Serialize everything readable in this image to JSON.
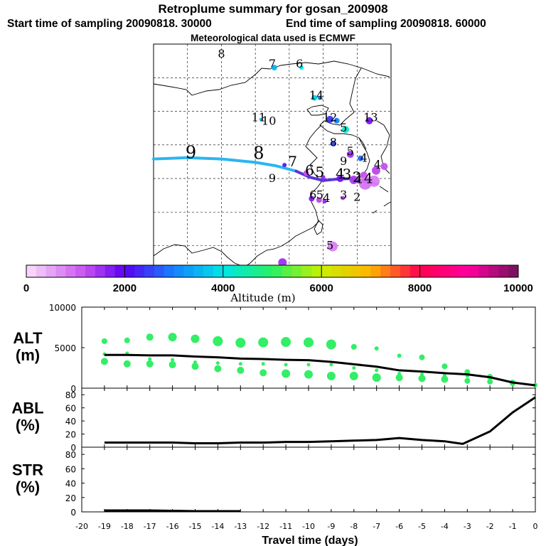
{
  "titles": {
    "line1": "Retroplume summary for gosan_200908",
    "line2_start": "Start time of sampling 20090818. 30000",
    "line2_end": "End time of sampling 20090818. 60000",
    "line3": "Meteorological data used is ECMWF"
  },
  "colors": {
    "track_light": "#2ab6f0",
    "track_dark": "#5a35d6",
    "green_dots": "#33ee66",
    "line": "#000000"
  },
  "chart_data": [
    {
      "type": "map",
      "title": "Retroplume summary for gosan_200908",
      "map_labels": [
        {
          "text": "9",
          "lon": 100.5,
          "lat": 38.0
        },
        {
          "text": "8",
          "lon": 110.5,
          "lat": 37.9
        },
        {
          "text": "7",
          "lon": 115.5,
          "lat": 36.8
        },
        {
          "text": "6",
          "lon": 118.0,
          "lat": 35.5
        },
        {
          "text": "5",
          "lon": 119.5,
          "lat": 35.2
        },
        {
          "text": "4",
          "lon": 122.5,
          "lat": 35.0
        },
        {
          "text": "3",
          "lon": 123.5,
          "lat": 34.9
        },
        {
          "text": "2",
          "lon": 125.0,
          "lat": 34.5
        },
        {
          "text": "14",
          "lon": 126.0,
          "lat": 34.3
        },
        {
          "text": "8",
          "lon": 105.0,
          "lat": 53.0
        },
        {
          "text": "7",
          "lon": 112.5,
          "lat": 51.5
        },
        {
          "text": "6",
          "lon": 116.5,
          "lat": 51.5
        },
        {
          "text": "14",
          "lon": 119.0,
          "lat": 46.8
        },
        {
          "text": "11",
          "lon": 110.5,
          "lat": 43.5
        },
        {
          "text": "10",
          "lon": 112.0,
          "lat": 43.0
        },
        {
          "text": "12",
          "lon": 121.0,
          "lat": 43.5
        },
        {
          "text": "5",
          "lon": 123.0,
          "lat": 42.0
        },
        {
          "text": "13",
          "lon": 127.0,
          "lat": 43.5
        },
        {
          "text": "8",
          "lon": 121.5,
          "lat": 39.8
        },
        {
          "text": "5",
          "lon": 124.0,
          "lat": 38.5
        },
        {
          "text": "4",
          "lon": 126.0,
          "lat": 37.5
        },
        {
          "text": "9",
          "lon": 123.0,
          "lat": 37.0
        },
        {
          "text": "4",
          "lon": 128.0,
          "lat": 36.5
        },
        {
          "text": "9",
          "lon": 112.5,
          "lat": 34.5
        },
        {
          "text": "6",
          "lon": 118.5,
          "lat": 32.0
        },
        {
          "text": "5",
          "lon": 119.5,
          "lat": 32.0
        },
        {
          "text": "4",
          "lon": 120.5,
          "lat": 31.5
        },
        {
          "text": "3",
          "lon": 123.0,
          "lat": 32.0
        },
        {
          "text": "2",
          "lon": 125.0,
          "lat": 31.7
        },
        {
          "text": "5",
          "lon": 121.0,
          "lat": 24.5
        }
      ],
      "colorbar": {
        "ticks": [
          "0",
          "2000",
          "4000",
          "6000",
          "8000",
          "10000"
        ],
        "label": "Altitude (m)",
        "range": [
          0,
          10000
        ]
      }
    },
    {
      "type": "scatter",
      "ylabel": "ALT\n(m)",
      "ylabel_lines": [
        "ALT",
        "(m)"
      ],
      "ytick_labels": [
        "0",
        "5000",
        "10000"
      ],
      "ylim": [
        0,
        10000
      ],
      "x": [
        -19,
        -18,
        -17,
        -16,
        -15,
        -14,
        -13,
        -12,
        -11,
        -10,
        -9,
        -8,
        -7,
        -6,
        -5,
        -4,
        -3,
        -2,
        -1,
        0
      ],
      "mean_altitude": [
        4100,
        4100,
        4050,
        4050,
        3900,
        3800,
        3650,
        3600,
        3500,
        3450,
        3250,
        2950,
        2650,
        2200,
        2050,
        1850,
        1700,
        1350,
        700,
        350
      ],
      "upper": [
        5800,
        5900,
        6300,
        6300,
        6100,
        5800,
        5600,
        5650,
        5700,
        5650,
        5400,
        5100,
        4900,
        4000,
        3800,
        2700,
        2000,
        1400,
        700,
        400
      ],
      "upper_size": [
        4,
        4,
        5,
        6,
        6,
        7,
        7,
        7,
        7,
        7,
        7,
        4,
        3,
        3,
        4,
        4,
        4,
        4,
        4,
        3
      ],
      "mid": [
        4200,
        4300,
        3600,
        3500,
        3200,
        3100,
        3000,
        3000,
        2900,
        2900,
        2900,
        2500,
        2200,
        1800,
        1700,
        1600,
        1500,
        1300,
        650,
        350
      ],
      "lower": [
        3300,
        3000,
        3000,
        2900,
        2700,
        2400,
        2200,
        1900,
        1800,
        1700,
        1500,
        1500,
        1300,
        1300,
        1200,
        1100,
        900,
        800,
        600,
        350
      ],
      "lower_size": [
        5,
        5,
        5,
        5,
        5,
        5,
        5,
        5,
        6,
        6,
        6,
        6,
        6,
        5,
        5,
        5,
        4,
        4,
        4,
        3
      ]
    },
    {
      "type": "line",
      "ylabel": "ABL\n(%)",
      "ylabel_lines": [
        "ABL",
        "(%)"
      ],
      "ytick_labels": [
        "0",
        "20",
        "40",
        "60",
        "80"
      ],
      "ylim": [
        0,
        90
      ],
      "x": [
        -19,
        -18,
        -17,
        -16,
        -15,
        -14,
        -13,
        -12,
        -11,
        -10,
        -9,
        -8,
        -7,
        -6,
        -5,
        -4,
        -3.2,
        -2,
        -1,
        0
      ],
      "values": [
        7,
        7,
        7,
        7,
        6,
        6,
        7,
        7,
        8,
        8,
        9,
        10,
        11,
        14,
        11,
        9,
        5,
        24,
        53,
        76
      ]
    },
    {
      "type": "line",
      "ylabel": "STR\n(%)",
      "ylabel_lines": [
        "STR",
        "(%)"
      ],
      "ytick_labels": [
        "0",
        "20",
        "40",
        "60",
        "80"
      ],
      "ylim": [
        0,
        90
      ],
      "x": [
        -19,
        -18,
        -17,
        -16,
        -15,
        -14,
        -13.5,
        -13
      ],
      "values": [
        2,
        2,
        2,
        1.5,
        1,
        1,
        1,
        1
      ],
      "xlabel": "Travel time (days)",
      "xtick_labels": [
        "-20",
        "-19",
        "-18",
        "-17",
        "-16",
        "-15",
        "-14",
        "-13",
        "-12",
        "-11",
        "-10",
        "-9",
        "-8",
        "-7",
        "-6",
        "-5",
        "-4",
        "-3",
        "-2",
        "-1",
        "0"
      ],
      "xlim": [
        -20,
        0
      ]
    }
  ]
}
